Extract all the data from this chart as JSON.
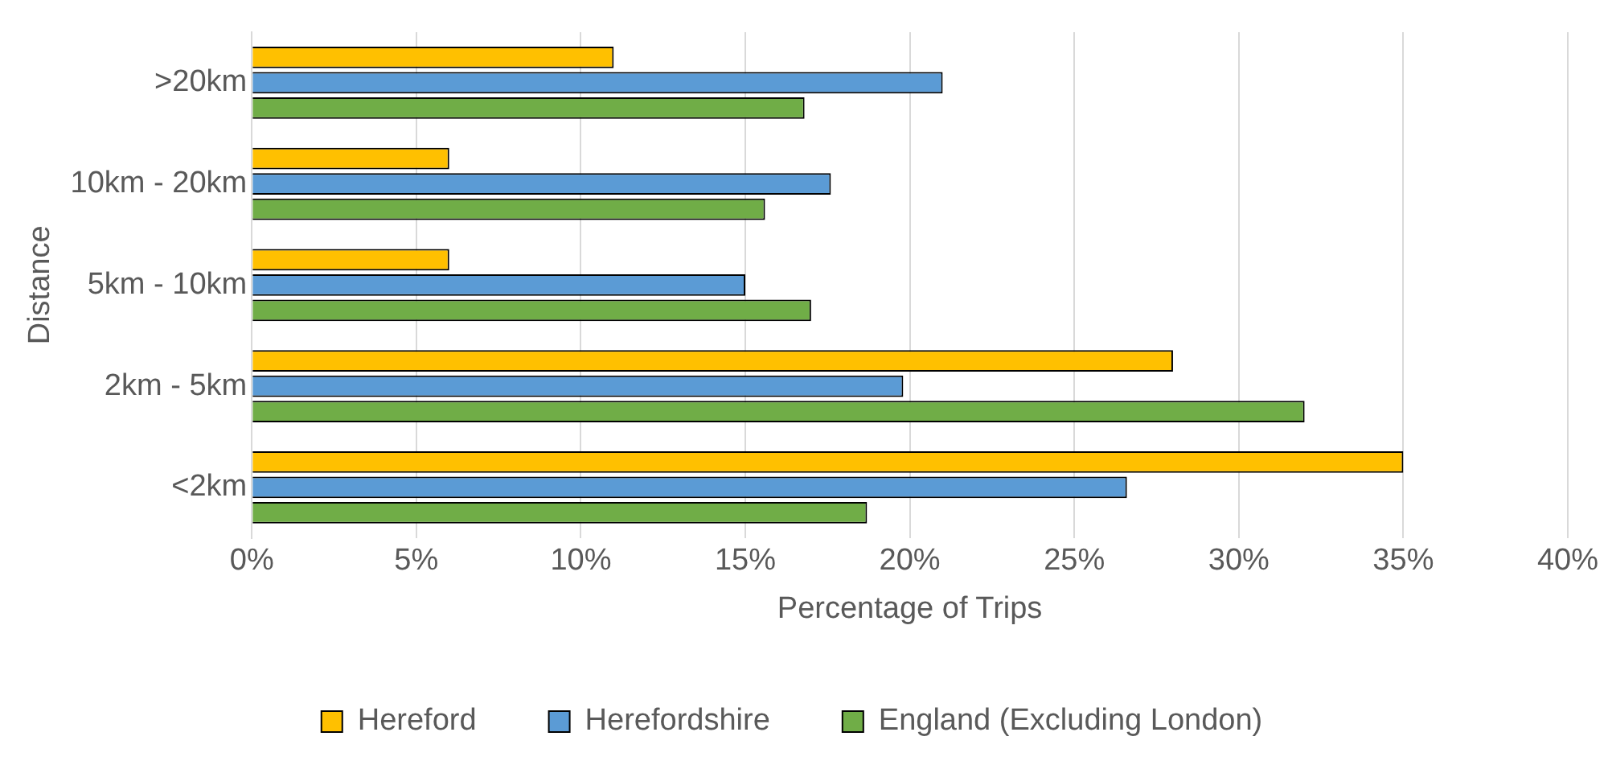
{
  "chart_data": {
    "type": "bar",
    "orientation": "horizontal",
    "xlabel": "Percentage of Trips",
    "ylabel": "Distance",
    "categories": [
      ">20km",
      "10km - 20km",
      "5km - 10km",
      "2km - 5km",
      "<2km"
    ],
    "series": [
      {
        "name": "Hereford",
        "color": "#ffc000",
        "values": [
          11,
          6,
          6,
          28,
          35
        ]
      },
      {
        "name": "Herefordshire",
        "color": "#5b9bd5",
        "values": [
          21,
          17.6,
          15,
          19.8,
          26.6
        ]
      },
      {
        "name": "England (Excluding London)",
        "color": "#70ad47",
        "values": [
          16.8,
          15.6,
          17,
          32,
          18.7
        ]
      }
    ],
    "xlim": [
      0,
      40
    ],
    "xticks": [
      {
        "value": 0,
        "label": "0%"
      },
      {
        "value": 5,
        "label": "5%"
      },
      {
        "value": 10,
        "label": "10%"
      },
      {
        "value": 15,
        "label": "15%"
      },
      {
        "value": 20,
        "label": "20%"
      },
      {
        "value": 25,
        "label": "25%"
      },
      {
        "value": 30,
        "label": "30%"
      },
      {
        "value": 35,
        "label": "35%"
      },
      {
        "value": 40,
        "label": "40%"
      }
    ],
    "grid": "x",
    "legend": "bottom"
  }
}
